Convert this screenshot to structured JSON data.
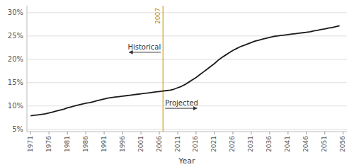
{
  "chart_data": {
    "type": "line",
    "xlabel": "Year",
    "color": "#1a1a1a",
    "grid": true,
    "xlim": [
      1970,
      2057
    ],
    "xticks": [
      1971,
      1976,
      1981,
      1986,
      1991,
      1996,
      2001,
      2006,
      2011,
      2016,
      2021,
      2026,
      2031,
      2036,
      2041,
      2046,
      2051,
      2056
    ],
    "ylim": [
      4.5,
      31.5
    ],
    "yticks": [
      {
        "value": 5,
        "label": "5%"
      },
      {
        "value": 10,
        "label": "10%"
      },
      {
        "value": 15,
        "label": "15%"
      },
      {
        "value": 20,
        "label": "20%"
      },
      {
        "value": 25,
        "label": "25%"
      },
      {
        "value": 30,
        "label": "30%"
      }
    ],
    "annotations": [
      {
        "text": "2007",
        "x": 2007
      },
      {
        "text": "Historical"
      },
      {
        "text": "Projected"
      }
    ],
    "x": [
      1971,
      1972,
      1973,
      1974,
      1975,
      1976,
      1977,
      1978,
      1979,
      1980,
      1981,
      1982,
      1983,
      1984,
      1985,
      1986,
      1987,
      1988,
      1989,
      1990,
      1991,
      1992,
      1993,
      1994,
      1995,
      1996,
      1997,
      1998,
      1999,
      2000,
      2001,
      2002,
      2003,
      2004,
      2005,
      2006,
      2007,
      2008,
      2009,
      2010,
      2011,
      2012,
      2013,
      2014,
      2015,
      2016,
      2017,
      2018,
      2019,
      2020,
      2021,
      2022,
      2023,
      2024,
      2025,
      2026,
      2027,
      2028,
      2029,
      2030,
      2031,
      2032,
      2033,
      2034,
      2035,
      2036,
      2037,
      2038,
      2039,
      2040,
      2041,
      2042,
      2043,
      2044,
      2045,
      2046,
      2047,
      2048,
      2049,
      2050,
      2051,
      2052,
      2053,
      2054,
      2055
    ],
    "values": [
      7.9,
      8.0,
      8.1,
      8.2,
      8.3,
      8.5,
      8.7,
      8.9,
      9.1,
      9.3,
      9.6,
      9.8,
      10.0,
      10.2,
      10.4,
      10.6,
      10.7,
      10.9,
      11.1,
      11.3,
      11.5,
      11.7,
      11.8,
      11.9,
      12.0,
      12.1,
      12.2,
      12.3,
      12.4,
      12.5,
      12.6,
      12.7,
      12.8,
      12.9,
      13.0,
      13.1,
      13.2,
      13.3,
      13.4,
      13.6,
      13.9,
      14.2,
      14.6,
      15.1,
      15.6,
      16.1,
      16.7,
      17.3,
      17.9,
      18.5,
      19.1,
      19.8,
      20.4,
      20.9,
      21.4,
      21.9,
      22.3,
      22.7,
      23.0,
      23.3,
      23.6,
      23.9,
      24.1,
      24.3,
      24.5,
      24.7,
      24.9,
      25.0,
      25.1,
      25.2,
      25.3,
      25.4,
      25.5,
      25.6,
      25.7,
      25.8,
      25.9,
      26.1,
      26.2,
      26.4,
      26.5,
      26.7,
      26.8,
      27.0,
      27.2
    ]
  }
}
